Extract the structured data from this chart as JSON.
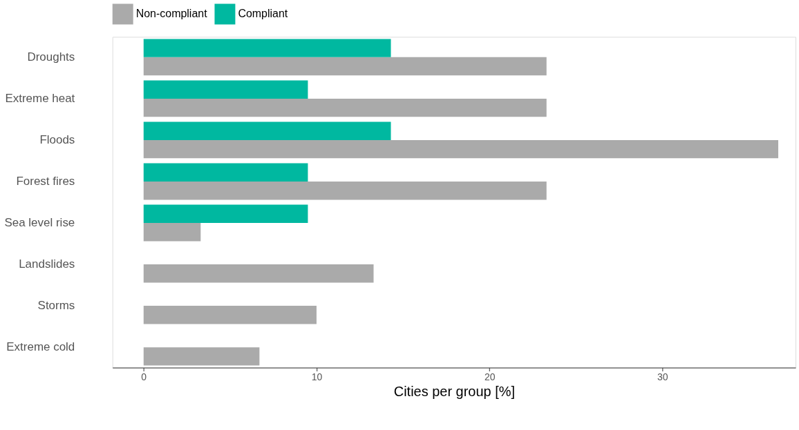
{
  "chart_data": {
    "type": "bar",
    "orientation": "horizontal",
    "xlabel": "Cities per group [%]",
    "categories": [
      "Droughts",
      "Extreme heat",
      "Floods",
      "Forest fires",
      "Sea level rise",
      "Landslides",
      "Storms",
      "Extreme cold"
    ],
    "series": [
      {
        "name": "Non-compliant",
        "color": "#aaaaaa",
        "values": [
          23.3,
          23.3,
          36.7,
          23.3,
          3.3,
          13.3,
          10.0,
          6.7
        ]
      },
      {
        "name": "Compliant",
        "color": "#00b8a0",
        "values": [
          14.3,
          9.5,
          14.3,
          9.5,
          9.5,
          null,
          null,
          null
        ]
      }
    ],
    "xlim": [
      -1.8,
      37.7
    ],
    "xticks": [
      0,
      10,
      20,
      30
    ],
    "grid": false,
    "legend": "top"
  }
}
